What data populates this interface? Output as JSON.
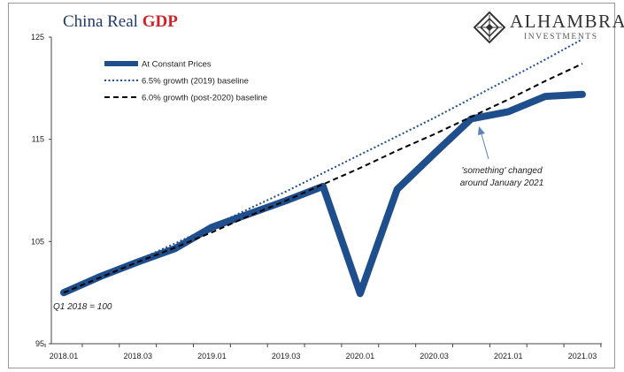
{
  "header": {
    "title_prefix": "China Real ",
    "title_highlight": "GDP"
  },
  "brand": {
    "name": "ALHAMBRA",
    "tagline": "INVESTMENTS"
  },
  "chart_data": {
    "type": "line",
    "title": "China Real GDP",
    "xlabel": "",
    "ylabel": "",
    "x_categories": [
      "2018.01",
      "2018.02",
      "2018.03",
      "2018.04",
      "2019.01",
      "2019.02",
      "2019.03",
      "2019.04",
      "2020.01",
      "2020.02",
      "2020.03",
      "2020.04",
      "2021.01",
      "2021.02",
      "2021.03"
    ],
    "x_tick_labels": [
      "2018.01",
      "2018.03",
      "2019.01",
      "2019.03",
      "2020.01",
      "2020.03",
      "2021.01",
      "2021.03"
    ],
    "y_ticks": [
      95,
      105,
      115,
      125
    ],
    "ylim": [
      95,
      125
    ],
    "grid": false,
    "legend_position": "top-left",
    "series": [
      {
        "name": "At Constant Prices",
        "style": "solid-thick",
        "color": "#1f4e8c",
        "values": [
          100.0,
          101.6,
          103.0,
          104.3,
          106.4,
          107.7,
          109.0,
          110.4,
          99.9,
          110.1,
          113.6,
          117.0,
          117.7,
          119.2,
          119.4
        ]
      },
      {
        "name": "6.5% growth (2019) baseline",
        "style": "dotted",
        "color": "#1f4e8c",
        "values": [
          100.0,
          101.6,
          103.2,
          104.8,
          106.5,
          108.2,
          109.9,
          111.7,
          113.5,
          115.3,
          117.1,
          119.0,
          120.9,
          122.8,
          124.8
        ]
      },
      {
        "name": "6.0% growth (post-2020) baseline",
        "style": "dashed",
        "color": "#000000",
        "values": [
          100.0,
          101.5,
          103.0,
          104.4,
          105.9,
          107.5,
          109.0,
          110.6,
          112.2,
          113.9,
          115.5,
          117.2,
          118.9,
          120.7,
          122.4
        ]
      }
    ],
    "annotations": [
      {
        "text_lines": [
          "'something' changed",
          "around January 2021"
        ],
        "points_to": "2020.04"
      },
      {
        "text": "Q1 2018 = 100",
        "points_to": "2018.01"
      }
    ]
  }
}
